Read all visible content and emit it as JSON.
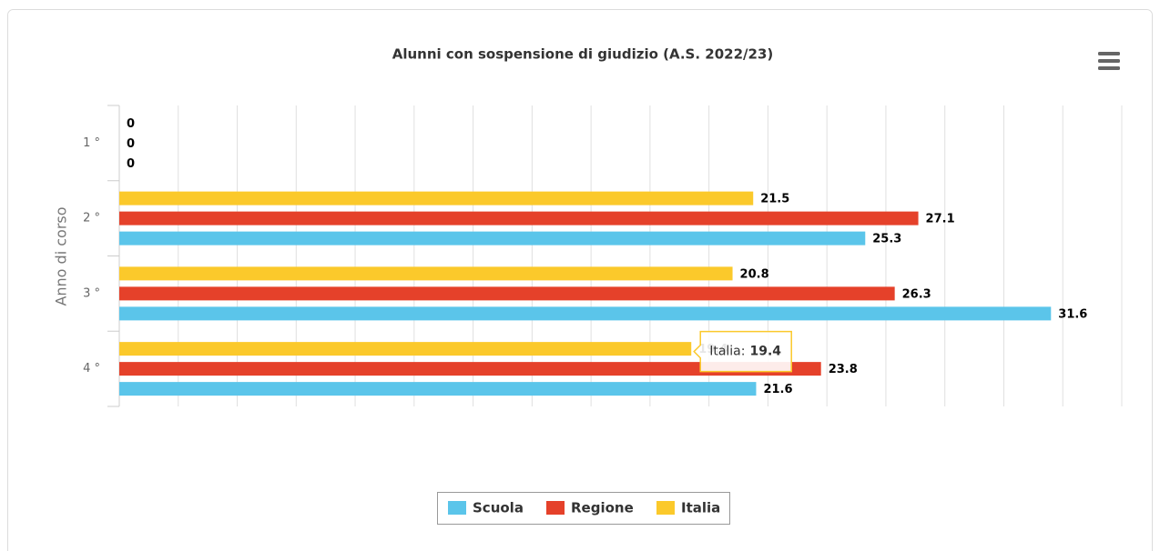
{
  "chart_data": {
    "type": "bar",
    "orientation": "horizontal",
    "title": "Alunni con sospensione di giudizio (A.S. 2022/23)",
    "y_axis_label": "Anno di corso",
    "categories": [
      "1 °",
      "2 °",
      "3 °",
      "4 °"
    ],
    "series": [
      {
        "name": "Scuola",
        "color": "#5bc5ea",
        "values": [
          0,
          25.3,
          31.6,
          21.6
        ]
      },
      {
        "name": "Regione",
        "color": "#e5412a",
        "values": [
          0,
          27.1,
          26.3,
          23.8
        ]
      },
      {
        "name": "Italia",
        "color": "#fbc92b",
        "values": [
          0,
          21.5,
          20.8,
          19.4
        ]
      }
    ],
    "xlim": [
      0,
      34
    ],
    "xticks": [
      0,
      2,
      4,
      6,
      8,
      10,
      12,
      14,
      16,
      18,
      20,
      22,
      24,
      26,
      28,
      30,
      32,
      34
    ],
    "grid": true,
    "legend": "bottom",
    "tooltip": {
      "label": "Italia:",
      "value": 19.4
    }
  }
}
